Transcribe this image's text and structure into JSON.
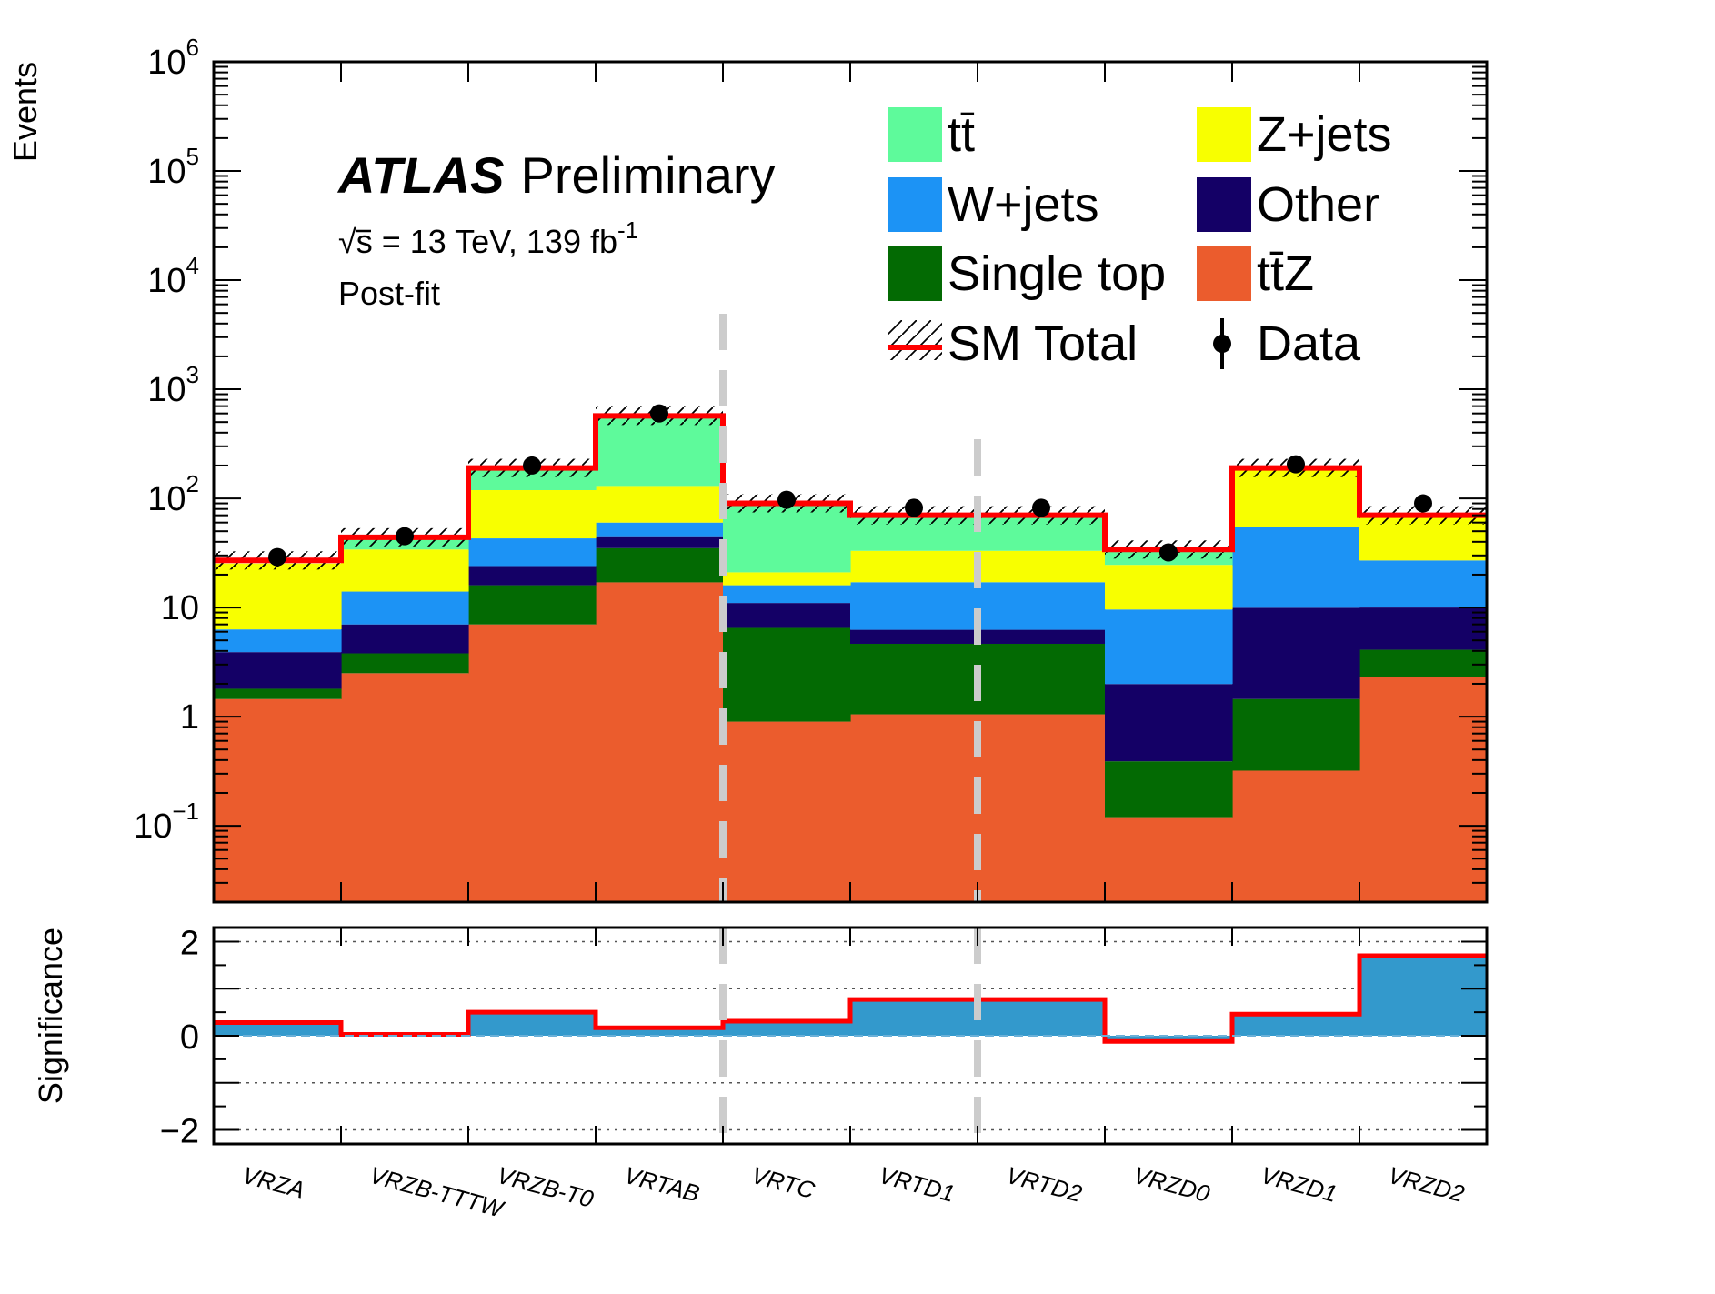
{
  "chart_data": [
    {
      "type": "bar",
      "stacked": true,
      "log_y": true,
      "ylabel": "Events",
      "ylim": [
        0.02,
        1000000
      ],
      "y_tick_labels": [
        {
          "value": 1000000,
          "base": "10",
          "exp": "6"
        },
        {
          "value": 100000,
          "base": "10",
          "exp": "5"
        },
        {
          "value": 10000,
          "base": "10",
          "exp": "4"
        },
        {
          "value": 1000,
          "base": "10",
          "exp": "3"
        },
        {
          "value": 100,
          "base": "10",
          "exp": "2"
        },
        {
          "value": 10,
          "base": "10",
          "exp": ""
        },
        {
          "value": 1,
          "base": "1",
          "exp": ""
        },
        {
          "value": 0.1,
          "base": "10",
          "exp": "−1"
        }
      ],
      "categories": [
        "VRZA",
        "VRZB-TTTW",
        "VRZB-T0",
        "VRTAB",
        "VRTC",
        "VRTD1",
        "VRTD2",
        "VRZD0",
        "VRZD1",
        "VRZD2"
      ],
      "annotation": {
        "experiment": "ATLAS",
        "status": "Preliminary",
        "energy_prefix": "√s = 13 TeV, 139 fb",
        "lumi_exp": "-1",
        "fit": "Post-fit"
      },
      "legend_position": "top-right",
      "series": [
        {
          "name": "tt̄Z",
          "color": "#eb5c2d",
          "values": [
            1.45,
            2.5,
            7,
            17,
            0.9,
            1.05,
            1.05,
            0.12,
            0.32,
            2.3
          ]
        },
        {
          "name": "Single top",
          "color": "#036a03",
          "values": [
            0.35,
            1.3,
            9,
            18,
            5.6,
            3.6,
            3.6,
            0.27,
            1.13,
            1.8
          ]
        },
        {
          "name": "Other",
          "color": "#140066",
          "values": [
            2.1,
            3.2,
            8,
            10,
            4.5,
            1.6,
            1.6,
            1.6,
            8.5,
            5.9
          ]
        },
        {
          "name": "W+jets",
          "color": "#1c93f5",
          "values": [
            2.4,
            7,
            19,
            15,
            5,
            10.8,
            10.8,
            7.6,
            45,
            17
          ]
        },
        {
          "name": "Z+jets",
          "color": "#f8ff00",
          "values": [
            19,
            20,
            76,
            70,
            5,
            16,
            16,
            15,
            125,
            43
          ]
        },
        {
          "name": "tt̄",
          "color": "#5efa9b",
          "values": [
            0,
            8,
            70,
            440,
            69,
            37,
            37,
            10,
            10,
            0
          ]
        }
      ],
      "sm_total": {
        "name": "SM Total",
        "values": [
          27,
          44,
          190,
          570,
          90,
          70,
          70,
          34,
          190,
          70
        ]
      },
      "data": {
        "name": "Data",
        "values": [
          29,
          45,
          200,
          600,
          97,
          82,
          82,
          32,
          205,
          90
        ]
      },
      "separators": [
        3,
        5
      ]
    },
    {
      "type": "bar",
      "ylabel": "Significance",
      "ylim": [
        -2.3,
        2.3
      ],
      "y_ticks": [
        -2,
        0,
        2
      ],
      "y_tick_labels": [
        "−2",
        "0",
        "2"
      ],
      "categories": [
        "VRZA",
        "VRZB-TTTW",
        "VRZB-T0",
        "VRTAB",
        "VRTC",
        "VRTD1",
        "VRTD2",
        "VRZD0",
        "VRZD1",
        "VRZD2"
      ],
      "values": [
        0.28,
        0.03,
        0.5,
        0.17,
        0.31,
        0.77,
        0.77,
        -0.12,
        0.46,
        1.7
      ],
      "fill_color": "#3399cc",
      "line_color": "#ff0000"
    }
  ],
  "legend": [
    {
      "key": "ttbar",
      "label": "tt̄",
      "color": "#5efa9b",
      "kind": "box"
    },
    {
      "key": "zjets",
      "label": "Z+jets",
      "color": "#f8ff00",
      "kind": "box"
    },
    {
      "key": "wjets",
      "label": "W+jets",
      "color": "#1c93f5",
      "kind": "box"
    },
    {
      "key": "other",
      "label": "Other",
      "color": "#140066",
      "kind": "box"
    },
    {
      "key": "singletop",
      "label": "Single top",
      "color": "#036a03",
      "kind": "box"
    },
    {
      "key": "ttz",
      "label": "tt̄Z",
      "color": "#eb5c2d",
      "kind": "box"
    },
    {
      "key": "smtotal",
      "label": "SM Total",
      "color": "#ff0000",
      "kind": "hatch"
    },
    {
      "key": "data",
      "label": "Data",
      "color": "#000000",
      "kind": "marker"
    }
  ]
}
